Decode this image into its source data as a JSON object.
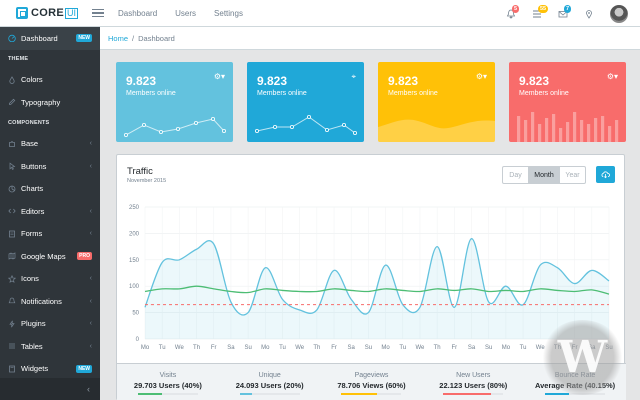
{
  "header": {
    "brand_text": "CORE",
    "brand_ui": "UI",
    "nav": [
      "Dashboard",
      "Users",
      "Settings"
    ],
    "badges": [
      {
        "icon": "bell-icon",
        "count": "5",
        "color": "#f86c6b"
      },
      {
        "icon": "list-icon",
        "count": "55",
        "color": "#ffc107"
      },
      {
        "icon": "location-icon",
        "count": "7",
        "color": "#20a8d8"
      }
    ]
  },
  "sidebar": {
    "items": [
      {
        "type": "item",
        "label": "Dashboard",
        "icon": "speedometer-icon",
        "badge": "NEW",
        "badge_color": "#20a8d8",
        "active": true
      },
      {
        "type": "title",
        "label": "THEME"
      },
      {
        "type": "item",
        "label": "Colors",
        "icon": "drop-icon"
      },
      {
        "type": "item",
        "label": "Typography",
        "icon": "pencil-icon"
      },
      {
        "type": "title",
        "label": "COMPONENTS"
      },
      {
        "type": "item",
        "label": "Base",
        "icon": "puzzle-icon",
        "caret": true
      },
      {
        "type": "item",
        "label": "Buttons",
        "icon": "cursor-icon",
        "caret": true
      },
      {
        "type": "item",
        "label": "Charts",
        "icon": "pie-chart-icon"
      },
      {
        "type": "item",
        "label": "Editors",
        "icon": "code-icon",
        "caret": true
      },
      {
        "type": "item",
        "label": "Forms",
        "icon": "note-icon",
        "caret": true
      },
      {
        "type": "item",
        "label": "Google Maps",
        "icon": "map-icon",
        "badge": "PRO",
        "badge_color": "#f86c6b"
      },
      {
        "type": "item",
        "label": "Icons",
        "icon": "star-icon",
        "caret": true
      },
      {
        "type": "item",
        "label": "Notifications",
        "icon": "bell-icon",
        "caret": true
      },
      {
        "type": "item",
        "label": "Plugins",
        "icon": "energy-icon",
        "caret": true
      },
      {
        "type": "item",
        "label": "Tables",
        "icon": "list-icon",
        "caret": true
      },
      {
        "type": "item",
        "label": "Widgets",
        "icon": "calculator-icon",
        "badge": "NEW",
        "badge_color": "#20a8d8"
      }
    ],
    "minimizer": "‹"
  },
  "breadcrumb": {
    "home": "Home",
    "separator": "/",
    "current": "Dashboard"
  },
  "cards": [
    {
      "value": "9.823",
      "label": "Members online",
      "color": "#63c2de",
      "tool": "gear-icon",
      "spark": "line-dots"
    },
    {
      "value": "9.823",
      "label": "Members online",
      "color": "#20a8d8",
      "tool": "location-icon",
      "spark": "line-dots"
    },
    {
      "value": "9.823",
      "label": "Members online",
      "color": "#ffc107",
      "tool": "gear-icon",
      "spark": "area"
    },
    {
      "value": "9.823",
      "label": "Members online",
      "color": "#f86c6b",
      "tool": "gear-icon",
      "spark": "bars"
    }
  ],
  "traffic": {
    "title": "Traffic",
    "subtitle": "November 2015",
    "periods": [
      "Day",
      "Month",
      "Year"
    ],
    "selected_period": "Month",
    "stats": [
      {
        "label": "Visits",
        "value": "29.703 Users (40%)",
        "percent": 40,
        "color": "#4dbd74"
      },
      {
        "label": "Unique",
        "value": "24.093 Users (20%)",
        "percent": 20,
        "color": "#63c2de"
      },
      {
        "label": "Pageviews",
        "value": "78.706 Views (60%)",
        "percent": 60,
        "color": "#ffc107"
      },
      {
        "label": "New Users",
        "value": "22.123 Users (80%)",
        "percent": 80,
        "color": "#f86c6b"
      },
      {
        "label": "Bounce Rate",
        "value": "Average Rate (40.15%)",
        "percent": 40.15,
        "color": "#20a8d8"
      }
    ]
  },
  "chart_data": {
    "type": "line",
    "ylim": [
      0,
      250
    ],
    "yticks": [
      0,
      50,
      100,
      150,
      200,
      250
    ],
    "grid": true,
    "categories": [
      "Mo",
      "Tu",
      "We",
      "Th",
      "Fr",
      "Sa",
      "Su",
      "Mo",
      "Tu",
      "We",
      "Th",
      "Fr",
      "Sa",
      "Su",
      "Mo",
      "Tu",
      "We",
      "Th",
      "Fr",
      "Sa",
      "Su",
      "Mo",
      "Tu",
      "We",
      "Th",
      "Fr",
      "Sa",
      "Su"
    ],
    "series": [
      {
        "color": "#63c2de",
        "fill": true,
        "values": [
          60,
          145,
          150,
          170,
          180,
          70,
          50,
          135,
          75,
          55,
          55,
          130,
          75,
          50,
          140,
          65,
          60,
          175,
          60,
          190,
          70,
          100,
          65,
          140,
          135,
          105,
          130,
          110
        ]
      },
      {
        "color": "#4dbd74",
        "fill": false,
        "values": [
          90,
          95,
          95,
          100,
          95,
          90,
          88,
          95,
          92,
          90,
          90,
          95,
          92,
          90,
          95,
          92,
          90,
          95,
          92,
          95,
          90,
          92,
          90,
          95,
          92,
          90,
          93,
          85
        ]
      },
      {
        "color": "#f86c6b",
        "fill": false,
        "dashed": true,
        "values": [
          65,
          65,
          65,
          65,
          65,
          65,
          65,
          65,
          65,
          65,
          65,
          65,
          65,
          65,
          65,
          65,
          65,
          65,
          65,
          65,
          65,
          65,
          65,
          65,
          65,
          65,
          65,
          65
        ]
      }
    ]
  }
}
